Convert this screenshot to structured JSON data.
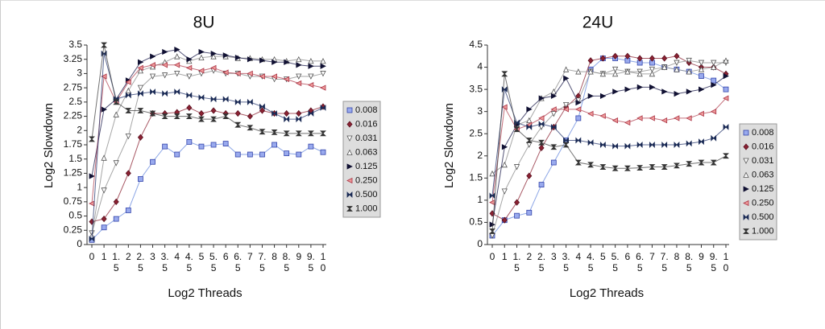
{
  "chart_data": [
    {
      "type": "line",
      "title": "8U",
      "xlabel": "Log2 Threads",
      "ylabel": "Log2 Slowdown",
      "categories": [
        "0",
        "1",
        "1.5",
        "2",
        "2.5",
        "3",
        "3.5",
        "4",
        "4.5",
        "5",
        "5.5",
        "6",
        "6.5",
        "7",
        "7.5",
        "8",
        "8.5",
        "9",
        "9.5",
        "10"
      ],
      "ylim": [
        0,
        3.5
      ],
      "yticks": [
        0,
        0.25,
        0.5,
        0.75,
        1,
        1.25,
        1.5,
        1.75,
        2,
        2.25,
        2.5,
        2.75,
        3,
        3.25,
        3.5
      ],
      "series": [
        {
          "name": "0.008",
          "color": "#6688dd",
          "marker": "square",
          "values": [
            0.08,
            0.3,
            0.45,
            0.6,
            1.15,
            1.45,
            1.72,
            1.58,
            1.8,
            1.72,
            1.75,
            1.77,
            1.58,
            1.58,
            1.58,
            1.75,
            1.6,
            1.58,
            1.72,
            1.62
          ]
        },
        {
          "name": "0.016",
          "color": "#8b2232",
          "marker": "diamond",
          "values": [
            0.4,
            0.45,
            0.75,
            1.25,
            1.88,
            2.3,
            2.3,
            2.32,
            2.4,
            2.3,
            2.35,
            2.3,
            2.3,
            2.25,
            2.35,
            2.3,
            2.3,
            2.3,
            2.35,
            2.42
          ]
        },
        {
          "name": "0.031",
          "color": "#888888",
          "marker": "triangle-down",
          "values": [
            0.2,
            0.95,
            1.43,
            1.9,
            2.75,
            2.95,
            2.97,
            3.0,
            2.95,
            3.0,
            3.05,
            3.0,
            3.0,
            2.95,
            2.95,
            2.9,
            2.9,
            2.95,
            2.95,
            3.0
          ]
        },
        {
          "name": "0.063",
          "color": "#888888",
          "marker": "triangle-up",
          "values": [
            0.15,
            1.52,
            2.28,
            2.7,
            3.05,
            3.12,
            3.2,
            3.3,
            3.22,
            3.28,
            3.3,
            3.3,
            3.27,
            3.27,
            3.25,
            3.25,
            3.22,
            3.25,
            3.22,
            3.22
          ]
        },
        {
          "name": "0.125",
          "color": "#1a1a4a",
          "marker": "triangle-right",
          "values": [
            1.2,
            2.37,
            2.55,
            2.88,
            3.2,
            3.3,
            3.38,
            3.42,
            3.25,
            3.38,
            3.35,
            3.32,
            3.28,
            3.25,
            3.23,
            3.2,
            3.2,
            3.15,
            3.13,
            3.13
          ]
        },
        {
          "name": "0.250",
          "color": "#b04050",
          "marker": "triangle-left",
          "values": [
            0.72,
            2.95,
            2.5,
            2.85,
            3.1,
            3.15,
            3.15,
            3.15,
            3.1,
            3.05,
            3.1,
            3.02,
            3.0,
            3.0,
            2.95,
            2.95,
            2.9,
            2.83,
            2.8,
            2.75
          ]
        },
        {
          "name": "0.500",
          "color": "#2a3a70",
          "marker": "bowtie",
          "values": [
            0.1,
            3.35,
            2.55,
            2.62,
            2.65,
            2.68,
            2.65,
            2.68,
            2.62,
            2.58,
            2.55,
            2.55,
            2.5,
            2.5,
            2.42,
            2.3,
            2.2,
            2.2,
            2.3,
            2.4
          ]
        },
        {
          "name": "1.000",
          "color": "#444444",
          "marker": "hourglass",
          "values": [
            1.85,
            3.5,
            2.5,
            2.35,
            2.35,
            2.3,
            2.25,
            2.25,
            2.25,
            2.2,
            2.2,
            2.25,
            2.1,
            2.05,
            1.98,
            1.97,
            1.95,
            1.95,
            1.95,
            1.95
          ]
        }
      ]
    },
    {
      "type": "line",
      "title": "24U",
      "xlabel": "Log2 Threads",
      "ylabel": "Log2 Slowdown",
      "categories": [
        "0",
        "1",
        "1.5",
        "2",
        "2.5",
        "3",
        "3.5",
        "4",
        "4.5",
        "5",
        "5.5",
        "6",
        "6.5",
        "7",
        "7.5",
        "8",
        "8.5",
        "9",
        "9.5",
        "10"
      ],
      "ylim": [
        0,
        4.5
      ],
      "yticks": [
        0,
        0.5,
        1,
        1.5,
        2,
        2.5,
        3,
        3.5,
        4,
        4.5
      ],
      "series": [
        {
          "name": "0.008",
          "color": "#6688dd",
          "marker": "square",
          "values": [
            0.2,
            0.55,
            0.65,
            0.72,
            1.35,
            1.85,
            2.35,
            2.85,
            3.95,
            4.2,
            4.2,
            4.15,
            4.1,
            4.1,
            4.0,
            3.95,
            3.9,
            3.8,
            3.7,
            3.5
          ]
        },
        {
          "name": "0.016",
          "color": "#8b2232",
          "marker": "diamond",
          "values": [
            0.7,
            0.55,
            0.95,
            1.55,
            2.18,
            2.65,
            3.1,
            3.35,
            4.15,
            4.2,
            4.25,
            4.25,
            4.2,
            4.2,
            4.2,
            4.25,
            4.1,
            4.0,
            4.0,
            3.85
          ]
        },
        {
          "name": "0.031",
          "color": "#888888",
          "marker": "triangle-down",
          "values": [
            0.2,
            1.2,
            1.75,
            2.25,
            2.65,
            2.95,
            3.15,
            3.25,
            3.9,
            3.85,
            3.95,
            3.9,
            3.9,
            3.95,
            4.0,
            4.1,
            4.15,
            4.1,
            4.1,
            4.1
          ]
        },
        {
          "name": "0.063",
          "color": "#888888",
          "marker": "triangle-up",
          "values": [
            1.6,
            1.8,
            2.7,
            2.8,
            3.3,
            3.45,
            3.95,
            3.9,
            3.9,
            3.85,
            3.85,
            3.9,
            3.85,
            3.85,
            4.0,
            3.95,
            3.9,
            3.95,
            4.0,
            4.15
          ]
        },
        {
          "name": "0.125",
          "color": "#1a1a4a",
          "marker": "triangle-right",
          "values": [
            0.45,
            2.2,
            2.7,
            3.05,
            3.3,
            3.35,
            3.75,
            3.2,
            3.35,
            3.35,
            3.45,
            3.5,
            3.55,
            3.55,
            3.45,
            3.4,
            3.45,
            3.5,
            3.6,
            3.8
          ]
        },
        {
          "name": "0.250",
          "color": "#b04050",
          "marker": "triangle-left",
          "values": [
            0.95,
            3.1,
            2.6,
            2.7,
            2.85,
            3.05,
            3.05,
            3.05,
            2.95,
            2.9,
            2.8,
            2.75,
            2.85,
            2.85,
            2.8,
            2.85,
            2.85,
            2.95,
            3.0,
            3.3
          ]
        },
        {
          "name": "0.500",
          "color": "#2a3a70",
          "marker": "bowtie",
          "values": [
            1.1,
            3.5,
            2.75,
            2.65,
            2.72,
            2.65,
            2.35,
            2.35,
            2.3,
            2.25,
            2.22,
            2.22,
            2.25,
            2.25,
            2.25,
            2.25,
            2.28,
            2.32,
            2.4,
            2.65
          ]
        },
        {
          "name": "1.000",
          "color": "#444444",
          "marker": "hourglass",
          "values": [
            0.3,
            3.85,
            2.6,
            2.35,
            2.3,
            2.2,
            2.25,
            1.85,
            1.8,
            1.75,
            1.72,
            1.72,
            1.73,
            1.75,
            1.75,
            1.78,
            1.82,
            1.85,
            1.85,
            2.0
          ]
        }
      ]
    }
  ]
}
